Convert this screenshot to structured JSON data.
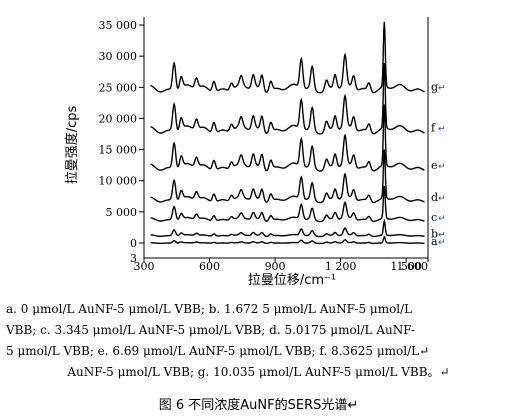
{
  "chart_data": {
    "type": "line",
    "ylabel": "拉曼强度/cps",
    "xlabel": "拉曼位移/cm⁻¹",
    "ylim": [
      0,
      35000
    ],
    "xlim": [
      300,
      1600
    ],
    "y_ticks": [
      "0",
      "5 000",
      "10 000",
      "15 000",
      "20 000",
      "25 000",
      "30 000",
      "35 000"
    ],
    "x_ticks": [
      "300",
      "600",
      "900",
      "1 200",
      "1 500",
      "1 600"
    ],
    "series": [
      {
        "name": "a",
        "offset": 0,
        "scale": 0.15
      },
      {
        "name": "b",
        "offset": 1200,
        "scale": 0.35
      },
      {
        "name": "c",
        "offset": 3800,
        "scale": 0.8
      },
      {
        "name": "d",
        "offset": 7000,
        "scale": 1.2
      },
      {
        "name": "e",
        "offset": 12200,
        "scale": 1.5
      },
      {
        "name": "f",
        "offset": 18200,
        "scale": 1.6
      },
      {
        "name": "g",
        "offset": 24800,
        "scale": 1.6
      }
    ],
    "peaks": [
      {
        "x": 438,
        "h": 2800
      },
      {
        "x": 470,
        "h": 1200
      },
      {
        "x": 540,
        "h": 1000
      },
      {
        "x": 620,
        "h": 1100
      },
      {
        "x": 700,
        "h": 700
      },
      {
        "x": 745,
        "h": 900
      },
      {
        "x": 800,
        "h": 1300
      },
      {
        "x": 840,
        "h": 1500
      },
      {
        "x": 880,
        "h": 1000
      },
      {
        "x": 1020,
        "h": 3000
      },
      {
        "x": 1070,
        "h": 2200
      },
      {
        "x": 1135,
        "h": 900
      },
      {
        "x": 1175,
        "h": 1400
      },
      {
        "x": 1220,
        "h": 3000
      },
      {
        "x": 1260,
        "h": 1300
      },
      {
        "x": 1330,
        "h": 800
      },
      {
        "x": 1400,
        "h": 6500
      }
    ]
  },
  "caption": {
    "lines": [
      "a. 0 μmol/L AuNF-5 μmol/L VBB; b. 1.672 5 μmol/L AuNF-5 μmol/L",
      "VBB; c. 3.345 μmol/L AuNF-5 μmol/L VBB; d. 5.0175 μmol/L AuNF-",
      "5 μmol/L VBB; e. 6.69 μmol/L AuNF-5 μmol/L VBB; f. 8.3625 μmol/L↵",
      "AuNF-5 μmol/L VBB; g. 10.035 μmol/L AuNF-5 μmol/L VBB。↵"
    ],
    "title": "图 6 不同浓度AuNF的SERS光谱↵"
  }
}
